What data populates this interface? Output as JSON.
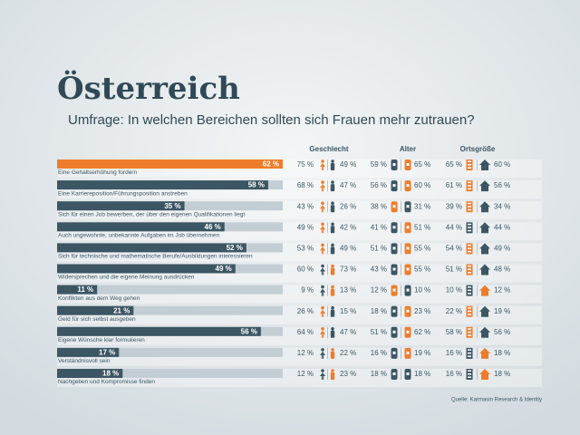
{
  "chart_data": {
    "type": "bar",
    "title": "Österreich",
    "subtitle": "Umfrage: In welchen Bereichen sollten sich Frauen mehr zutrauen?",
    "categories": [
      "Eine Gehaltserhöhung fordern",
      "Eine Karriereposition/Führungsposition anstreben",
      "Sich für einen Job bewerben, der über den eigenen Qualifikationen liegt",
      "Auch ungewohnte, unbekannte Aufgaben im Job übernehmen",
      "Sich für technische und mathematische Berufe/Ausbildungen interessieren",
      "Widersprechen und die eigene Meinung ausdrücken",
      "Konflikten aus dem Weg gehen",
      "Geld für sich selbst ausgeben",
      "Eigene Wünsche klar formulieren",
      "Verständnisvoll sein",
      "Nachgeben und Kompromisse finden"
    ],
    "values": [
      62,
      58,
      35,
      46,
      52,
      49,
      11,
      21,
      56,
      17,
      18
    ],
    "value_labels": [
      "62 %",
      "58 %",
      "35 %",
      "46 %",
      "52 %",
      "49 %",
      "11 %",
      "21 %",
      "56 %",
      "17 %",
      "18 %"
    ],
    "colors": [
      "#ee7d2b",
      "#3c5663",
      "#3c5663",
      "#3c5663",
      "#3c5663",
      "#3c5663",
      "#3c5663",
      "#3c5663",
      "#3c5663",
      "#3c5663",
      "#3c5663"
    ],
    "groups": [
      {
        "name": "Geschlecht",
        "columns": [
          {
            "values": [
              75,
              68,
              43,
              49,
              53,
              60,
              9,
              26,
              64,
              12,
              12
            ],
            "value_labels": [
              "75 %",
              "68 %",
              "43 %",
              "49 %",
              "53 %",
              "60 %",
              "9 %",
              "26 %",
              "64 %",
              "12 %",
              "12 %"
            ]
          },
          {
            "values": [
              49,
              47,
              26,
              42,
              49,
              73,
              13,
              15,
              47,
              22,
              23
            ],
            "value_labels": [
              "49 %",
              "47 %",
              "26 %",
              "42 %",
              "49 %",
              "73 %",
              "13 %",
              "15 %",
              "47 %",
              "22 %",
              "23 %"
            ]
          }
        ]
      },
      {
        "name": "Alter",
        "columns": [
          {
            "values": [
              59,
              56,
              38,
              41,
              51,
              43,
              12,
              18,
              51,
              16,
              18
            ],
            "value_labels": [
              "59 %",
              "56 %",
              "38 %",
              "41 %",
              "51 %",
              "43 %",
              "12 %",
              "18 %",
              "51 %",
              "16 %",
              "18 %"
            ]
          },
          {
            "values": [
              65,
              60,
              31,
              51,
              55,
              55,
              10,
              23,
              62,
              19,
              18
            ],
            "value_labels": [
              "65 %",
              "60 %",
              "31 %",
              "51 %",
              "55 %",
              "55 %",
              "10 %",
              "23 %",
              "62 %",
              "19 %",
              "18 %"
            ]
          }
        ]
      },
      {
        "name": "Ortsgröße",
        "columns": [
          {
            "values": [
              65,
              61,
              39,
              44,
              54,
              51,
              10,
              22,
              58,
              16,
              16
            ],
            "value_labels": [
              "65 %",
              "61 %",
              "39 %",
              "44 %",
              "54 %",
              "51 %",
              "10 %",
              "22 %",
              "58 %",
              "16 %",
              "16 %"
            ]
          },
          {
            "values": [
              60,
              56,
              34,
              44,
              49,
              48,
              12,
              19,
              56,
              18,
              18
            ],
            "value_labels": [
              "60 %",
              "56 %",
              "34 %",
              "44 %",
              "49 %",
              "48 %",
              "12 %",
              "19 %",
              "56 %",
              "18 %",
              "18 %"
            ]
          }
        ]
      }
    ],
    "highlight_color": "#ee7d2b",
    "icon_color": "#3c5663",
    "source": "Quelle: Karmasin Research & Identity"
  }
}
